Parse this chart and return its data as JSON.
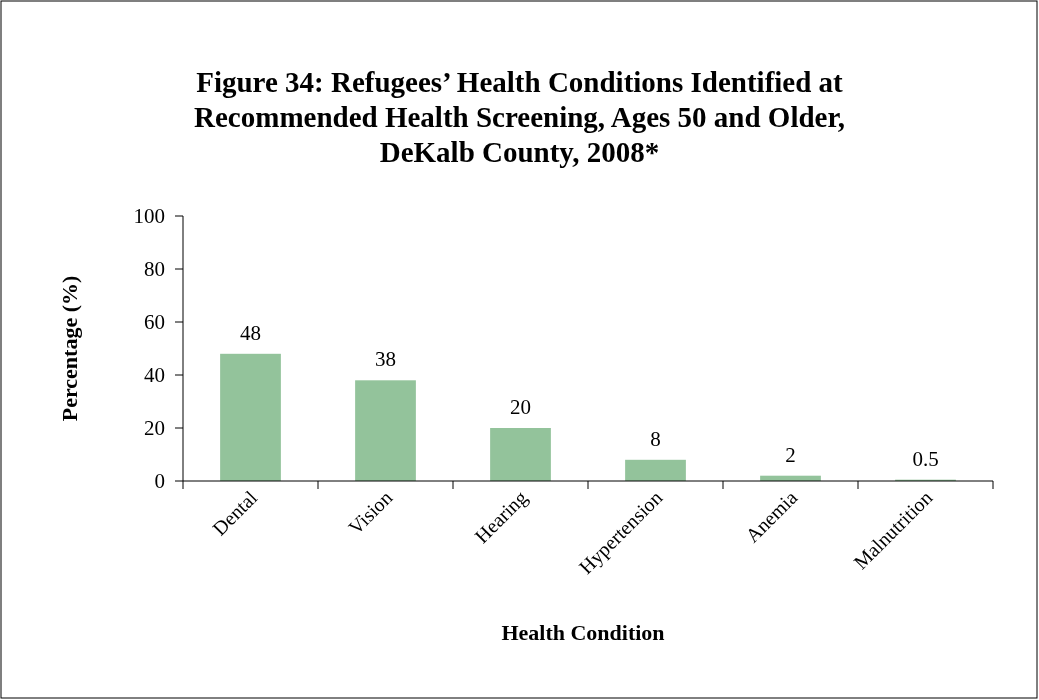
{
  "chart_data": {
    "type": "bar",
    "title": "Figure 34: Refugees’ Health Conditions Identified at Recommended Health Screening, Ages 50 and Older, DeKalb County, 2008*",
    "xlabel": "Health Condition",
    "ylabel": "Percentage (%)",
    "categories": [
      "Dental",
      "Vision",
      "Hearing",
      "Hypertension",
      "Anemia",
      "Malnutrition"
    ],
    "values": [
      48,
      38,
      20,
      8,
      2,
      0.5
    ],
    "color": "#93c39b",
    "ylim": [
      0,
      100
    ],
    "yticks": [
      0,
      20,
      40,
      60,
      80,
      100
    ],
    "data_labels": true
  }
}
